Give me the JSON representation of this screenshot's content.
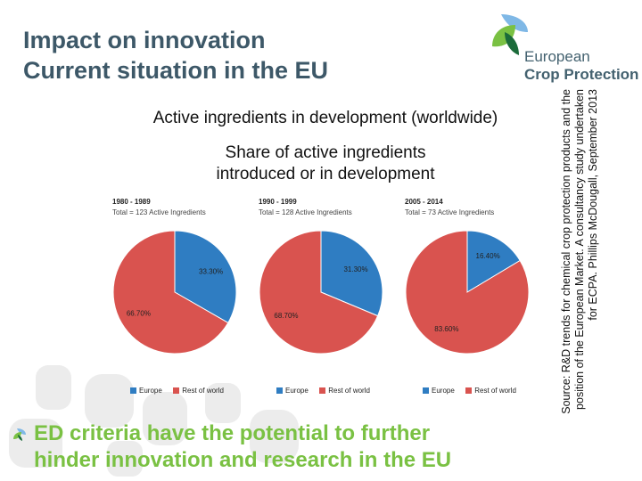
{
  "header": {
    "title_line1": "Impact on innovation",
    "title_line2": "Current situation in the EU"
  },
  "logo": {
    "line1": "European",
    "line2": "Crop Protection"
  },
  "subtitle": {
    "line1": "Active ingredients in development (worldwide)",
    "line2a": "Share of active ingredients",
    "line2b": "introduced or in development"
  },
  "source": {
    "line1": "Source: R&D trends for chemical crop protection products and the",
    "line2": "position of the European Market. A consultancy study undertaken",
    "line3": "for ECPA. Phillips McDougall, September 2013"
  },
  "bottom": {
    "line1": "ED criteria have the potential to further",
    "line2": "hinder innovation and research in the EU"
  },
  "colors": {
    "europe": "#2f7dc2",
    "rest_of_world": "#d9534f",
    "accent_green": "#7ac143",
    "title": "#3d5868"
  },
  "chart_data": [
    {
      "type": "pie",
      "title": "1980 - 1989",
      "subtitle": "Total = 123 Active Ingredients",
      "categories": [
        "Europe",
        "Rest of world"
      ],
      "values": [
        33.3,
        66.7
      ],
      "labels": [
        "33.30%",
        "66.70%"
      ],
      "legend": "bottom"
    },
    {
      "type": "pie",
      "title": "1990 - 1999",
      "subtitle": "Total = 128 Active Ingredients",
      "categories": [
        "Europe",
        "Rest of world"
      ],
      "values": [
        31.3,
        68.7
      ],
      "labels": [
        "31.30%",
        "68.70%"
      ],
      "legend": "bottom"
    },
    {
      "type": "pie",
      "title": "2005 - 2014",
      "subtitle": "Total = 73 Active Ingredients",
      "categories": [
        "Europe",
        "Rest of world"
      ],
      "values": [
        16.4,
        83.6
      ],
      "labels": [
        "16.40%",
        "83.60%"
      ],
      "legend": "bottom"
    }
  ]
}
